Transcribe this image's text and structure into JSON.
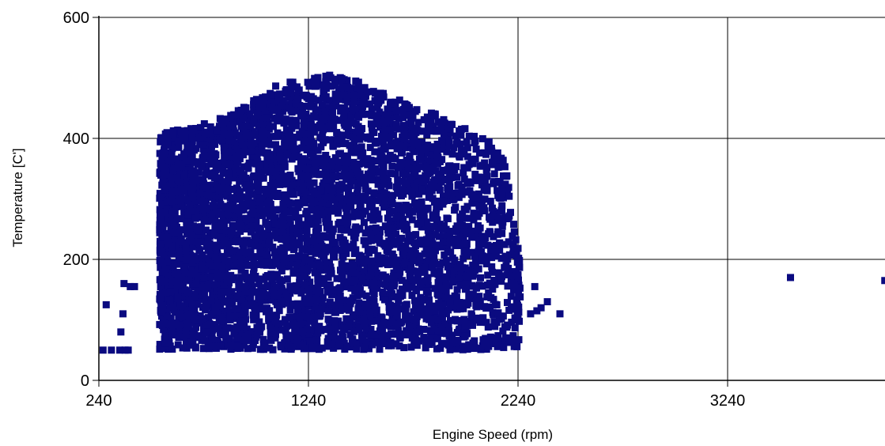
{
  "chart_data": {
    "type": "scatter",
    "title": "",
    "xlabel": "Engine Speed (rpm)",
    "ylabel": "Temperature [C']",
    "xlim": [
      240,
      4240
    ],
    "ylim": [
      0,
      600
    ],
    "x_ticks": [
      240,
      1240,
      2240,
      3240
    ],
    "y_ticks": [
      0,
      200,
      400,
      600
    ],
    "grid": true,
    "legend": "none",
    "marker": "square",
    "colors": {
      "point": "#0a0a80",
      "grid": "#000000",
      "background": "#ffffff"
    },
    "series": [
      {
        "dense_region": {
          "x_range": [
            530,
            2250
          ],
          "y_min": 50,
          "upper_envelope": [
            [
              530,
              400
            ],
            [
              560,
              410
            ],
            [
              620,
              415
            ],
            [
              700,
              420
            ],
            [
              800,
              430
            ],
            [
              900,
              445
            ],
            [
              1000,
              470
            ],
            [
              1100,
              490
            ],
            [
              1240,
              500
            ],
            [
              1350,
              505
            ],
            [
              1450,
              500
            ],
            [
              1560,
              480
            ],
            [
              1700,
              460
            ],
            [
              1800,
              450
            ],
            [
              1900,
              430
            ],
            [
              2000,
              415
            ],
            [
              2100,
              400
            ],
            [
              2180,
              360
            ],
            [
              2220,
              280
            ],
            [
              2250,
              200
            ]
          ]
        },
        "points": [
          [
            260,
            50
          ],
          [
            275,
            125
          ],
          [
            300,
            50
          ],
          [
            340,
            50
          ],
          [
            345,
            80
          ],
          [
            355,
            110
          ],
          [
            360,
            160
          ],
          [
            365,
            50
          ],
          [
            380,
            50
          ],
          [
            390,
            155
          ],
          [
            410,
            155
          ],
          [
            2300,
            110
          ],
          [
            2320,
            155
          ],
          [
            2330,
            115
          ],
          [
            2350,
            120
          ],
          [
            2380,
            130
          ],
          [
            2440,
            110
          ],
          [
            2240,
            100
          ],
          [
            2200,
            70
          ],
          [
            3540,
            170
          ],
          [
            3990,
            165
          ]
        ]
      }
    ]
  }
}
